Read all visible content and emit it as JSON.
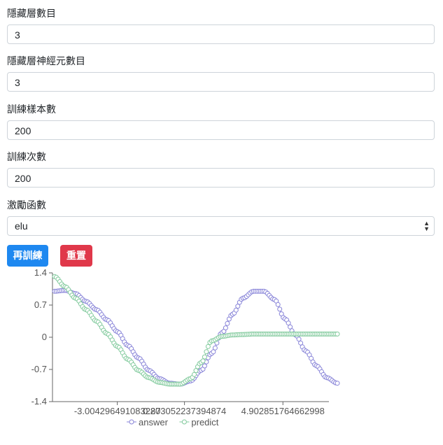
{
  "form": {
    "hidden_layers": {
      "label": "隱藏層數目",
      "value": "3"
    },
    "hidden_neurons": {
      "label": "隱藏層神經元數目",
      "value": "3"
    },
    "training_samples": {
      "label": "訓練樣本數",
      "value": "200"
    },
    "training_epochs": {
      "label": "訓練次數",
      "value": "200"
    },
    "activation": {
      "label": "激勵函數",
      "value": "elu"
    }
  },
  "buttons": {
    "retrain": "再訓練",
    "reset": "重置"
  },
  "chart_data": {
    "type": "scatter",
    "ylim": [
      -1.4,
      1.4
    ],
    "xlim": [
      -6.1,
      7.1
    ],
    "yticks": [
      "1.4",
      "0.7",
      "0",
      "-0.7",
      "-1.4"
    ],
    "xticks": [
      "-3.004296491083287",
      "0.203052237394874",
      "4.902851764662998"
    ],
    "legend": [
      "answer",
      "predict"
    ],
    "colors": {
      "answer": "#8884d8",
      "predict": "#82ca9d"
    },
    "series": [
      {
        "name": "answer",
        "points": [
          [
            -6.0,
            1.0
          ],
          [
            -5.5,
            1.02
          ],
          [
            -5.0,
            0.95
          ],
          [
            -4.5,
            0.78
          ],
          [
            -4.0,
            0.6
          ],
          [
            -3.5,
            0.38
          ],
          [
            -3.0,
            0.12
          ],
          [
            -2.5,
            -0.18
          ],
          [
            -2.0,
            -0.45
          ],
          [
            -1.5,
            -0.72
          ],
          [
            -1.0,
            -0.9
          ],
          [
            -0.5,
            -1.0
          ],
          [
            0.0,
            -1.02
          ],
          [
            0.5,
            -0.95
          ],
          [
            1.0,
            -0.72
          ],
          [
            1.5,
            -0.35
          ],
          [
            2.0,
            0.1
          ],
          [
            2.5,
            0.5
          ],
          [
            3.0,
            0.85
          ],
          [
            3.5,
            1.0
          ],
          [
            4.0,
            1.0
          ],
          [
            4.5,
            0.82
          ],
          [
            5.0,
            0.4
          ],
          [
            5.5,
            0.05
          ],
          [
            6.0,
            -0.3
          ],
          [
            6.5,
            -0.62
          ],
          [
            7.0,
            -0.88
          ],
          [
            7.5,
            -1.0
          ]
        ]
      },
      {
        "name": "predict",
        "points": [
          [
            -6.0,
            1.32
          ],
          [
            -5.5,
            1.1
          ],
          [
            -5.0,
            0.85
          ],
          [
            -4.5,
            0.6
          ],
          [
            -4.0,
            0.35
          ],
          [
            -3.5,
            0.08
          ],
          [
            -3.0,
            -0.2
          ],
          [
            -2.5,
            -0.48
          ],
          [
            -2.0,
            -0.72
          ],
          [
            -1.5,
            -0.88
          ],
          [
            -1.0,
            -0.98
          ],
          [
            -0.5,
            -1.02
          ],
          [
            0.0,
            -1.02
          ],
          [
            0.5,
            -0.9
          ],
          [
            1.0,
            -0.55
          ],
          [
            1.5,
            -0.08
          ],
          [
            2.0,
            0.02
          ],
          [
            2.5,
            0.05
          ],
          [
            3.0,
            0.06
          ],
          [
            3.5,
            0.07
          ],
          [
            4.0,
            0.07
          ],
          [
            4.5,
            0.07
          ],
          [
            5.0,
            0.07
          ],
          [
            5.5,
            0.07
          ],
          [
            6.0,
            0.07
          ],
          [
            6.5,
            0.07
          ],
          [
            7.0,
            0.07
          ],
          [
            7.5,
            0.07
          ]
        ]
      }
    ]
  }
}
